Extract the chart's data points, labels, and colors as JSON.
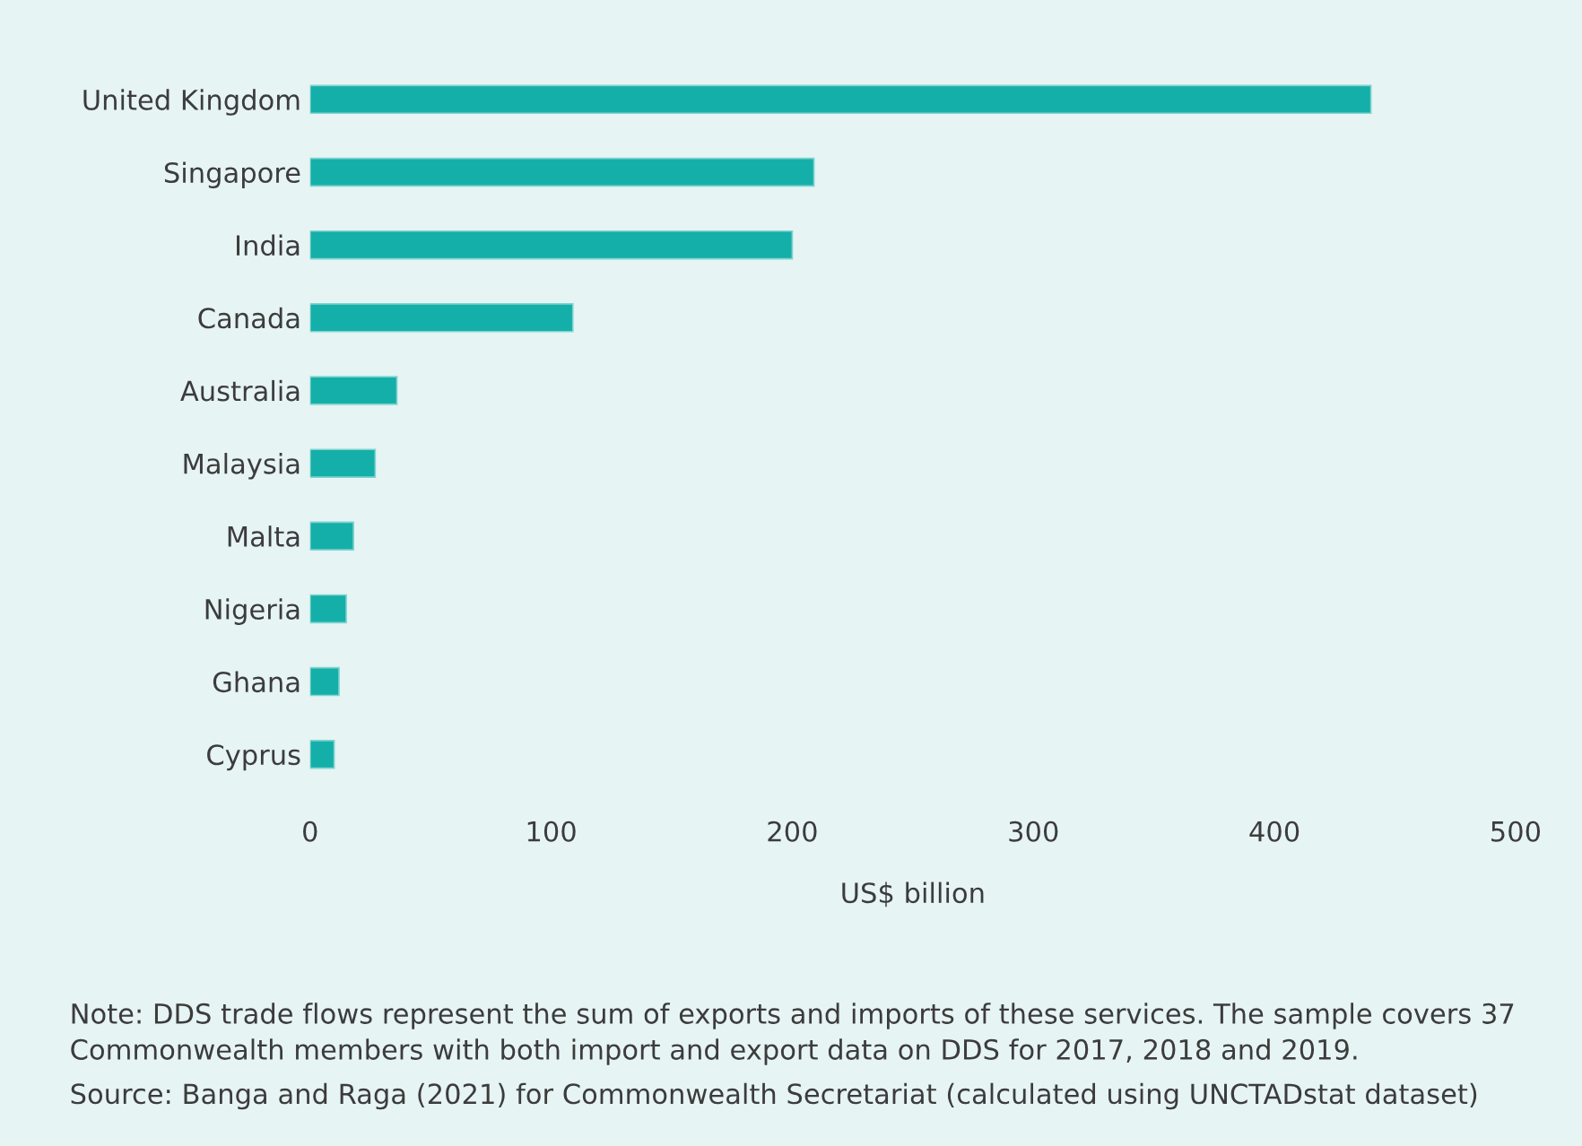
{
  "chart_data": {
    "type": "bar",
    "orientation": "horizontal",
    "categories": [
      "United Kingdom",
      "Singapore",
      "India",
      "Canada",
      "Australia",
      "Malaysia",
      "Malta",
      "Nigeria",
      "Ghana",
      "Cyprus"
    ],
    "values": [
      440,
      209,
      200,
      109,
      36,
      27,
      18,
      15,
      12,
      10
    ],
    "color": "#14afa8",
    "xlabel": "US$ billion",
    "xlim": [
      0,
      500
    ],
    "xticks": [
      0,
      100,
      200,
      300,
      400,
      500
    ],
    "grid": false,
    "annotations": [
      "Note: DDS trade flows represent the sum of exports and imports of these services. The sample covers 37 Commonwealth members with both import and export data on DDS for 2017, 2018 and 2019.",
      "Source: Banga and Raga (2021) for Commonwealth Secretariat (calculated using UNCTADstat dataset)"
    ]
  }
}
